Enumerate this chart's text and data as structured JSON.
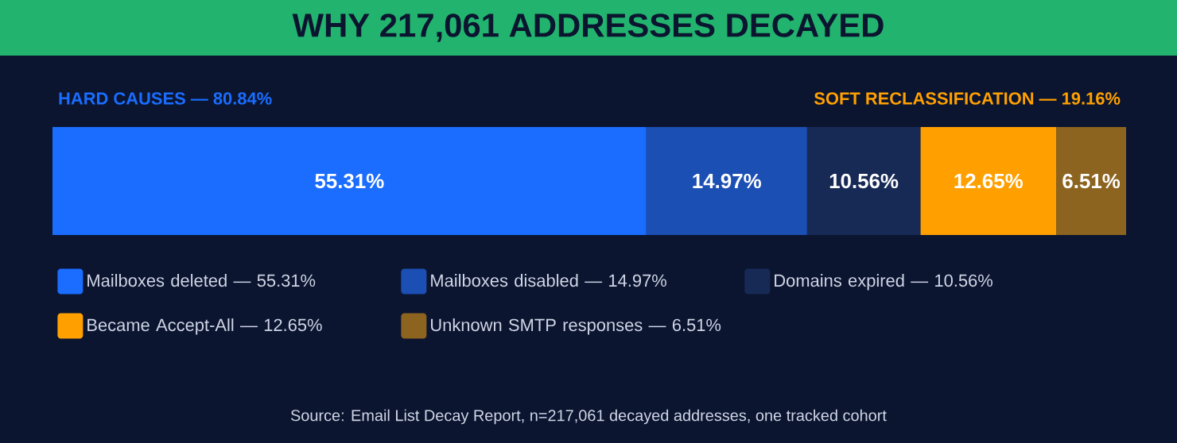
{
  "chart_data": {
    "type": "bar",
    "orientation": "horizontal",
    "stacked": true,
    "title": "WHY 217,061 ADDRESSES DECAYED",
    "categories": [
      null
    ],
    "xlim": [
      0,
      100
    ],
    "tick_labels": false,
    "legend": "bottom",
    "series": [
      {
        "name": "Mailboxes deleted — 55.31%",
        "color": "#1a6dff",
        "values": [
          55.31
        ],
        "value_labels": [
          "55.31%"
        ]
      },
      {
        "name": "Mailboxes disabled — 14.97%",
        "color": "#1c4fb4",
        "values": [
          14.97
        ],
        "value_labels": [
          "14.97%"
        ]
      },
      {
        "name": "Domains expired — 10.56%",
        "color": "#172a56",
        "values": [
          10.56
        ],
        "value_labels": [
          "10.56%"
        ]
      },
      {
        "name": "Became Accept-All — 12.65%",
        "color": "#ffa000",
        "values": [
          12.65
        ],
        "value_labels": [
          "12.65%"
        ]
      },
      {
        "name": "Unknown SMTP responses — 6.51%",
        "color": "#8c6420",
        "values": [
          6.51
        ],
        "value_labels": [
          "6.51%"
        ]
      }
    ],
    "annotations": [
      "HARD CAUSES — 80.84%",
      "SOFT RECLASSIFICATION — 19.16%",
      "Source: Email List Decay Report, n=217,061 decayed addresses, one tracked cohort"
    ]
  }
}
